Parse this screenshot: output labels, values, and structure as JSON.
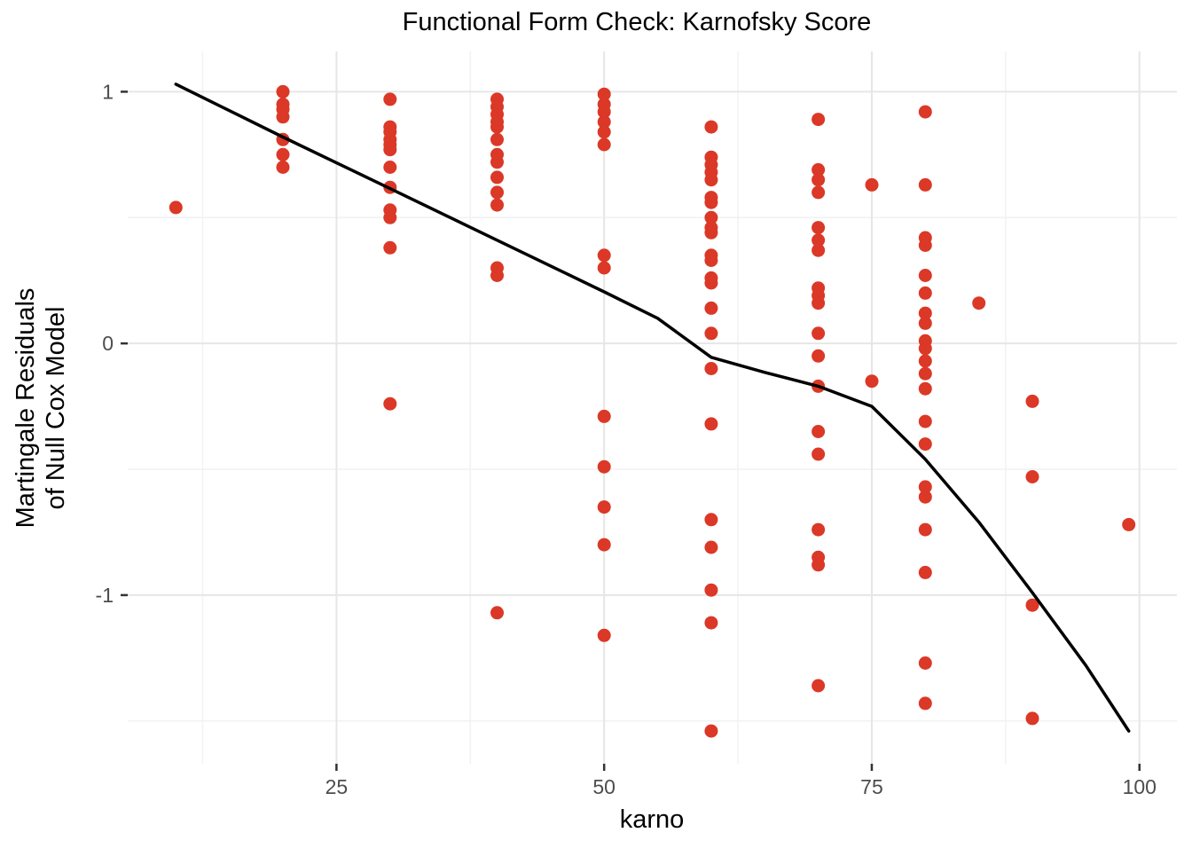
{
  "chart_data": {
    "type": "scatter",
    "title": "Functional Form Check: Karnofsky Score",
    "xlabel": "karno",
    "ylabel_line1": "Martingale Residuals",
    "ylabel_line2": "of Null Cox Model",
    "x_ticks": [
      25,
      50,
      75,
      100
    ],
    "y_ticks": [
      -1,
      0,
      1
    ],
    "x_minor_gridlines": [
      12.5,
      37.5,
      62.5,
      87.5
    ],
    "y_minor_gridlines": [
      -1.5,
      -0.5,
      0.5
    ],
    "xlim": [
      5.5,
      103.5
    ],
    "ylim": [
      -1.67,
      1.16
    ],
    "grid": true,
    "legend_position": "none",
    "point_color": "#db3827",
    "smooth_line_color": "#000000",
    "major_grid_color": "#e6e6e6",
    "minor_grid_color": "#f2f2f2",
    "tick_color": "#333333",
    "series": [
      {
        "name": "martingale-residuals",
        "points": [
          [
            10,
            0.54
          ],
          [
            20,
            1.0
          ],
          [
            20,
            0.95
          ],
          [
            20,
            0.93
          ],
          [
            20,
            0.9
          ],
          [
            20,
            0.81
          ],
          [
            20,
            0.75
          ],
          [
            20,
            0.7
          ],
          [
            30,
            0.97
          ],
          [
            30,
            0.86
          ],
          [
            30,
            0.84
          ],
          [
            30,
            0.81
          ],
          [
            30,
            0.79
          ],
          [
            30,
            0.77
          ],
          [
            30,
            0.7
          ],
          [
            30,
            0.62
          ],
          [
            30,
            0.53
          ],
          [
            30,
            0.5
          ],
          [
            30,
            0.38
          ],
          [
            30,
            -0.24
          ],
          [
            40,
            0.97
          ],
          [
            40,
            0.94
          ],
          [
            40,
            0.91
          ],
          [
            40,
            0.88
          ],
          [
            40,
            0.86
          ],
          [
            40,
            0.81
          ],
          [
            40,
            0.75
          ],
          [
            40,
            0.72
          ],
          [
            40,
            0.66
          ],
          [
            40,
            0.6
          ],
          [
            40,
            0.55
          ],
          [
            40,
            0.3
          ],
          [
            40,
            0.27
          ],
          [
            40,
            -1.07
          ],
          [
            50,
            0.99
          ],
          [
            50,
            0.95
          ],
          [
            50,
            0.92
          ],
          [
            50,
            0.88
          ],
          [
            50,
            0.84
          ],
          [
            50,
            0.79
          ],
          [
            50,
            0.35
          ],
          [
            50,
            0.3
          ],
          [
            50,
            -0.29
          ],
          [
            50,
            -0.49
          ],
          [
            50,
            -0.65
          ],
          [
            50,
            -0.8
          ],
          [
            50,
            -1.16
          ],
          [
            60,
            0.86
          ],
          [
            60,
            0.74
          ],
          [
            60,
            0.71
          ],
          [
            60,
            0.68
          ],
          [
            60,
            0.65
          ],
          [
            60,
            0.58
          ],
          [
            60,
            0.56
          ],
          [
            60,
            0.5
          ],
          [
            60,
            0.46
          ],
          [
            60,
            0.44
          ],
          [
            60,
            0.35
          ],
          [
            60,
            0.33
          ],
          [
            60,
            0.26
          ],
          [
            60,
            0.24
          ],
          [
            60,
            0.14
          ],
          [
            60,
            0.04
          ],
          [
            60,
            -0.1
          ],
          [
            60,
            -0.32
          ],
          [
            60,
            -0.7
          ],
          [
            60,
            -0.81
          ],
          [
            60,
            -0.98
          ],
          [
            60,
            -1.11
          ],
          [
            60,
            -1.54
          ],
          [
            70,
            0.89
          ],
          [
            70,
            0.69
          ],
          [
            70,
            0.65
          ],
          [
            70,
            0.6
          ],
          [
            70,
            0.46
          ],
          [
            70,
            0.41
          ],
          [
            70,
            0.37
          ],
          [
            70,
            0.22
          ],
          [
            70,
            0.19
          ],
          [
            70,
            0.16
          ],
          [
            70,
            0.04
          ],
          [
            70,
            -0.05
          ],
          [
            70,
            -0.17
          ],
          [
            70,
            -0.35
          ],
          [
            70,
            -0.44
          ],
          [
            70,
            -0.74
          ],
          [
            70,
            -0.85
          ],
          [
            70,
            -0.88
          ],
          [
            70,
            -1.36
          ],
          [
            75,
            0.63
          ],
          [
            75,
            -0.15
          ],
          [
            80,
            0.92
          ],
          [
            80,
            0.63
          ],
          [
            80,
            0.42
          ],
          [
            80,
            0.39
          ],
          [
            80,
            0.27
          ],
          [
            80,
            0.2
          ],
          [
            80,
            0.12
          ],
          [
            80,
            0.08
          ],
          [
            80,
            0.01
          ],
          [
            80,
            -0.02
          ],
          [
            80,
            -0.07
          ],
          [
            80,
            -0.12
          ],
          [
            80,
            -0.18
          ],
          [
            80,
            -0.31
          ],
          [
            80,
            -0.4
          ],
          [
            80,
            -0.57
          ],
          [
            80,
            -0.61
          ],
          [
            80,
            -0.74
          ],
          [
            80,
            -0.91
          ],
          [
            80,
            -1.27
          ],
          [
            80,
            -1.43
          ],
          [
            85,
            0.16
          ],
          [
            90,
            -0.23
          ],
          [
            90,
            -0.53
          ],
          [
            90,
            -1.04
          ],
          [
            90,
            -1.49
          ],
          [
            99,
            -0.72
          ]
        ]
      }
    ],
    "smooth_line": [
      [
        10,
        1.03
      ],
      [
        20,
        0.82
      ],
      [
        30,
        0.615
      ],
      [
        40,
        0.41
      ],
      [
        50,
        0.205
      ],
      [
        55,
        0.1
      ],
      [
        60,
        -0.055
      ],
      [
        65,
        -0.115
      ],
      [
        70,
        -0.17
      ],
      [
        75,
        -0.25
      ],
      [
        80,
        -0.46
      ],
      [
        85,
        -0.71
      ],
      [
        90,
        -0.99
      ],
      [
        95,
        -1.28
      ],
      [
        99,
        -1.54
      ]
    ]
  }
}
